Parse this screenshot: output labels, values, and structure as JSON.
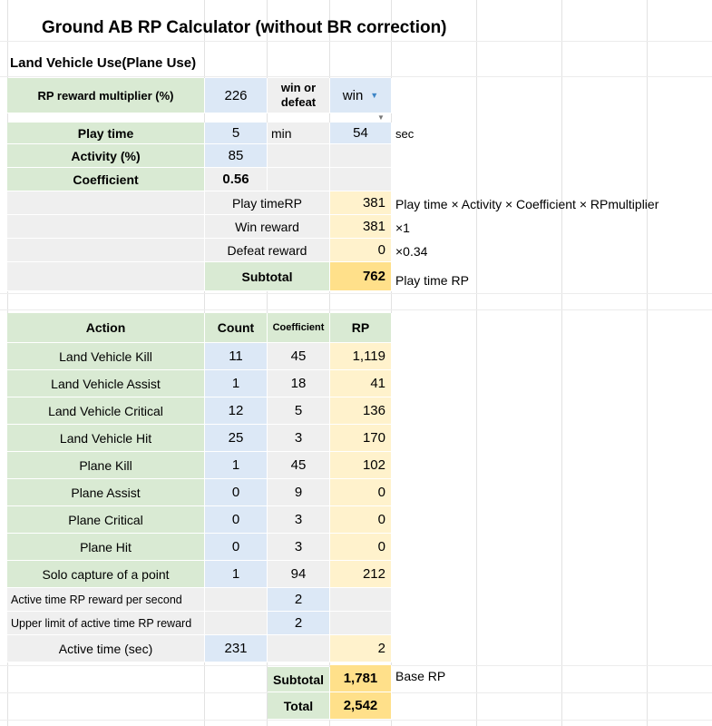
{
  "title": "Ground AB RP Calculator (without BR correction)",
  "section_title": "Land Vehicle Use(Plane Use)",
  "top": {
    "rp_multiplier_label": "RP reward multiplier (%)",
    "rp_multiplier_value": "226",
    "win_defeat_label": "win or defeat",
    "win_defeat_value": "win",
    "play_time_label": "Play time",
    "play_time_min": "5",
    "min_unit": "min",
    "play_time_sec": "54",
    "sec_unit": "sec",
    "activity_label": "Activity (%)",
    "activity_value": "85",
    "coefficient_label": "Coefficient",
    "coefficient_value": "0.56",
    "play_time_rp_label": "Play timeRP",
    "play_time_rp_value": "381",
    "play_time_rp_note": "Play time × Activity × Coefficient × RPmultiplier",
    "win_reward_label": "Win reward",
    "win_reward_value": "381",
    "win_reward_note": "×1",
    "defeat_reward_label": "Defeat reward",
    "defeat_reward_value": "0",
    "defeat_reward_note": "×0.34",
    "subtotal_label": "Subtotal",
    "subtotal_value": "762",
    "subtotal_note": "Play time RP"
  },
  "actions": {
    "headers": {
      "action": "Action",
      "count": "Count",
      "coefficient": "Coefficient",
      "rp": "RP"
    },
    "rows": [
      {
        "action": "Land Vehicle Kill",
        "count": "11",
        "coefficient": "45",
        "rp": "1,119"
      },
      {
        "action": "Land Vehicle Assist",
        "count": "1",
        "coefficient": "18",
        "rp": "41"
      },
      {
        "action": "Land Vehicle Critical",
        "count": "12",
        "coefficient": "5",
        "rp": "136"
      },
      {
        "action": "Land Vehicle Hit",
        "count": "25",
        "coefficient": "3",
        "rp": "170"
      },
      {
        "action": "Plane Kill",
        "count": "1",
        "coefficient": "45",
        "rp": "102"
      },
      {
        "action": "Plane Assist",
        "count": "0",
        "coefficient": "9",
        "rp": "0"
      },
      {
        "action": "Plane Critical",
        "count": "0",
        "coefficient": "3",
        "rp": "0"
      },
      {
        "action": "Plane Hit",
        "count": "0",
        "coefficient": "3",
        "rp": "0"
      },
      {
        "action": "Solo capture of a point",
        "count": "1",
        "coefficient": "94",
        "rp": "212"
      }
    ],
    "active_rp_per_second_label": "Active time RP reward per second",
    "active_rp_per_second_value": "2",
    "active_upper_limit_label": "Upper limit of active time RP reward",
    "active_upper_limit_value": "2",
    "active_time_label": "Active time (sec)",
    "active_time_count": "231",
    "active_time_rp": "2",
    "subtotal_label": "Subtotal",
    "subtotal_value": "1,781",
    "subtotal_note": "Base RP",
    "total_label": "Total",
    "total_value": "2,542"
  },
  "colors": {
    "label_green": "#d9ead3",
    "input_blue": "#dce8f6",
    "result_yellow": "#fff2cc",
    "total_yellow": "#ffe08a",
    "neutral_gray": "#efefef"
  }
}
